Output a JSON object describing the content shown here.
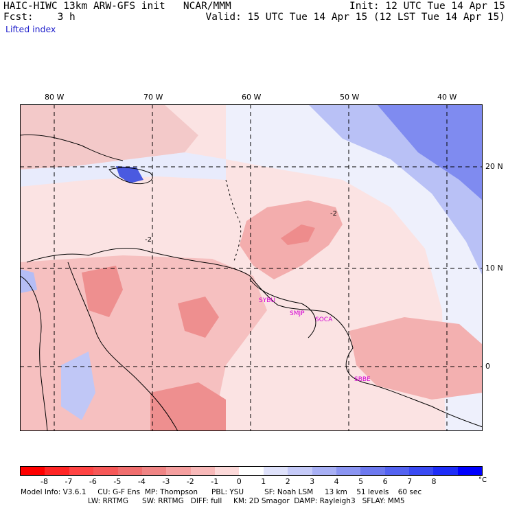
{
  "header": {
    "title_left": "HAIC-HIWC 13km ARW-GFS init   NCAR/MMM",
    "init": "Init: 12 UTC Tue 14 Apr 15",
    "fcst_label": "Fcst:    3 h",
    "valid": "Valid: 15 UTC Tue 14 Apr 15 (12 LST Tue 14 Apr 15)",
    "field": "Lifted index"
  },
  "map": {
    "lon_labels": [
      "80 W",
      "70 W",
      "60 W",
      "50 W",
      "40 W"
    ],
    "lat_labels": [
      "20 N",
      "10 N",
      "0"
    ],
    "contour_labels": [
      "-2",
      "-2"
    ],
    "stations": [
      "SYBU",
      "SMJP",
      "SOCA",
      "SBBE"
    ]
  },
  "colorbar": {
    "ticks": [
      "-8",
      "-7",
      "-6",
      "-5",
      "-4",
      "-3",
      "-2",
      "-1",
      "0",
      "1",
      "2",
      "3",
      "4",
      "5",
      "6",
      "7",
      "8"
    ],
    "unit": "°C",
    "colors": [
      "#ff0000",
      "#ff2525",
      "#ff4444",
      "#f65858",
      "#f06e6e",
      "#f08585",
      "#f59f9f",
      "#f8b9b9",
      "#fcd9d9",
      "#ffffff",
      "#dfe2fb",
      "#c5caf8",
      "#a8b0f5",
      "#8b95f2",
      "#6d79ef",
      "#5463f1",
      "#3a4af3",
      "#1e2df8",
      "#0000ff"
    ]
  },
  "footer": {
    "line1": "Model Info: V3.6.1     CU: G-F Ens  MP: Thompson      PBL: YSU         SF: Noah LSM     13 km    51 levels    60 sec",
    "line2": "LW: RRTMG      SW: RRTMG   DIFF: full     KM: 2D Smagor  DAMP: Rayleigh3   SFLAY: MM5"
  }
}
